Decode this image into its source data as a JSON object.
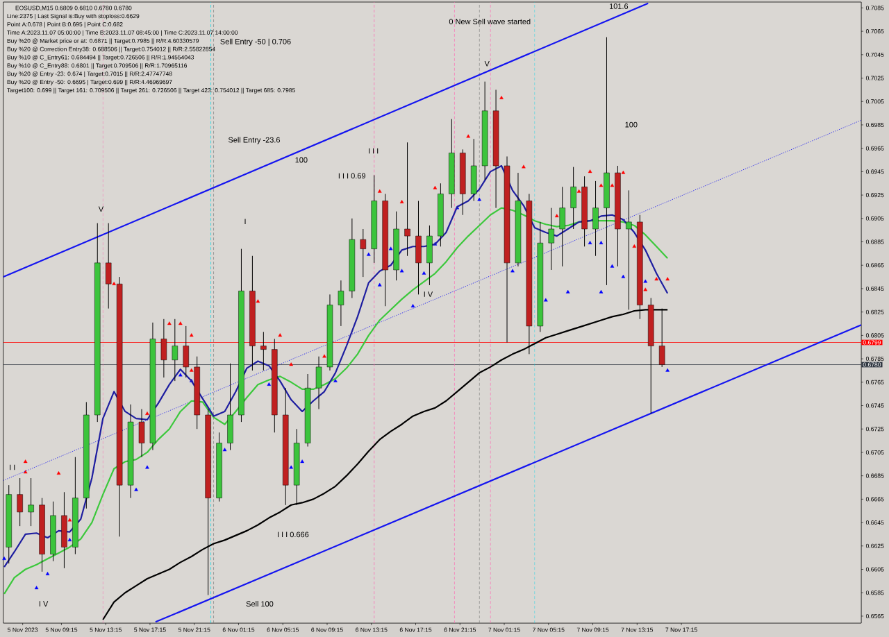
{
  "chart_data": {
    "type": "candlestick",
    "title": "EOSUSD,M15 0.6809 0.6810 0.6780 0.6780",
    "x": [
      "2023-11-05T04:30",
      "2023-11-05T05:30",
      "2023-11-05T06:30",
      "2023-11-05T07:30",
      "2023-11-05T08:30",
      "2023-11-05T09:30",
      "2023-11-05T10:30",
      "2023-11-05T11:30",
      "2023-11-05T12:30",
      "2023-11-05T13:30",
      "2023-11-05T14:30",
      "2023-11-05T15:30",
      "2023-11-05T16:30",
      "2023-11-05T17:30",
      "2023-11-05T18:30",
      "2023-11-05T19:30",
      "2023-11-05T20:30",
      "2023-11-05T21:30",
      "2023-11-05T22:30",
      "2023-11-05T23:30",
      "2023-11-06T00:30",
      "2023-11-06T01:30",
      "2023-11-06T02:30",
      "2023-11-06T03:30",
      "2023-11-06T04:30",
      "2023-11-06T05:30",
      "2023-11-06T06:30",
      "2023-11-06T07:30",
      "2023-11-06T08:30",
      "2023-11-06T09:30",
      "2023-11-06T10:30",
      "2023-11-06T11:30",
      "2023-11-06T12:30",
      "2023-11-06T13:30",
      "2023-11-06T14:30",
      "2023-11-06T15:30",
      "2023-11-06T16:30",
      "2023-11-06T17:30",
      "2023-11-06T18:30",
      "2023-11-06T19:30",
      "2023-11-06T20:30",
      "2023-11-06T21:30",
      "2023-11-06T22:30",
      "2023-11-06T23:30",
      "2023-11-07T00:30",
      "2023-11-07T01:30",
      "2023-11-07T02:30",
      "2023-11-07T03:30",
      "2023-11-07T04:30",
      "2023-11-07T05:30",
      "2023-11-07T06:30",
      "2023-11-07T07:30",
      "2023-11-07T08:30",
      "2023-11-07T09:30",
      "2023-11-07T10:30",
      "2023-11-07T11:30",
      "2023-11-07T12:30",
      "2023-11-07T13:30",
      "2023-11-07T14:30",
      "2023-11-07T15:30"
    ],
    "ohlc": [
      [
        0.6624,
        0.6677,
        0.661,
        0.6669
      ],
      [
        0.6669,
        0.6683,
        0.6642,
        0.6654
      ],
      [
        0.6654,
        0.6683,
        0.6642,
        0.666
      ],
      [
        0.666,
        0.6666,
        0.6603,
        0.6618
      ],
      [
        0.6618,
        0.6663,
        0.6612,
        0.6651
      ],
      [
        0.6651,
        0.6671,
        0.6606,
        0.6624
      ],
      [
        0.6624,
        0.6701,
        0.6618,
        0.6666
      ],
      [
        0.6666,
        0.6748,
        0.6657,
        0.6737
      ],
      [
        0.6737,
        0.6901,
        0.6731,
        0.6867
      ],
      [
        0.6867,
        0.6901,
        0.6828,
        0.6849
      ],
      [
        0.6849,
        0.6855,
        0.6633,
        0.6677
      ],
      [
        0.6677,
        0.6746,
        0.6666,
        0.6731
      ],
      [
        0.6731,
        0.6742,
        0.6701,
        0.6713
      ],
      [
        0.6713,
        0.6816,
        0.6707,
        0.6802
      ],
      [
        0.6802,
        0.6819,
        0.6769,
        0.6784
      ],
      [
        0.6784,
        0.6819,
        0.6766,
        0.6796
      ],
      [
        0.6796,
        0.6813,
        0.6769,
        0.6778
      ],
      [
        0.6778,
        0.6787,
        0.6725,
        0.6737
      ],
      [
        0.6737,
        0.6742,
        0.6583,
        0.6666
      ],
      [
        0.6666,
        0.6722,
        0.6663,
        0.6713
      ],
      [
        0.6713,
        0.6781,
        0.6707,
        0.6737
      ],
      [
        0.6737,
        0.6879,
        0.6731,
        0.6843
      ],
      [
        0.6843,
        0.6873,
        0.6775,
        0.6796
      ],
      [
        0.6796,
        0.6808,
        0.6775,
        0.6793
      ],
      [
        0.6793,
        0.6802,
        0.6722,
        0.6737
      ],
      [
        0.6737,
        0.676,
        0.666,
        0.6677
      ],
      [
        0.6677,
        0.6725,
        0.666,
        0.6713
      ],
      [
        0.6713,
        0.6772,
        0.671,
        0.676
      ],
      [
        0.676,
        0.6787,
        0.6742,
        0.6778
      ],
      [
        0.6778,
        0.684,
        0.6775,
        0.6831
      ],
      [
        0.6831,
        0.6852,
        0.6813,
        0.6843
      ],
      [
        0.6843,
        0.6905,
        0.6837,
        0.6887
      ],
      [
        0.6887,
        0.6896,
        0.6855,
        0.6879
      ],
      [
        0.6879,
        0.6942,
        0.6867,
        0.692
      ],
      [
        0.692,
        0.6926,
        0.683,
        0.6861
      ],
      [
        0.6861,
        0.6911,
        0.6852,
        0.6896
      ],
      [
        0.6896,
        0.697,
        0.6873,
        0.689
      ],
      [
        0.689,
        0.692,
        0.684,
        0.6867
      ],
      [
        0.6867,
        0.6899,
        0.6848,
        0.689
      ],
      [
        0.689,
        0.6935,
        0.6881,
        0.6926
      ],
      [
        0.6926,
        0.699,
        0.6914,
        0.6961
      ],
      [
        0.6961,
        0.6964,
        0.6908,
        0.6926
      ],
      [
        0.6926,
        0.6973,
        0.692,
        0.695
      ],
      [
        0.695,
        0.7022,
        0.6938,
        0.6997
      ],
      [
        0.6997,
        0.7015,
        0.6914,
        0.695
      ],
      [
        0.695,
        0.6958,
        0.6799,
        0.6867
      ],
      [
        0.6867,
        0.6944,
        0.6864,
        0.692
      ],
      [
        0.692,
        0.6926,
        0.6789,
        0.6813
      ],
      [
        0.6813,
        0.6902,
        0.6808,
        0.6884
      ],
      [
        0.6884,
        0.6914,
        0.6861,
        0.6896
      ],
      [
        0.6896,
        0.6932,
        0.6864,
        0.6914
      ],
      [
        0.6914,
        0.6949,
        0.6896,
        0.6932
      ],
      [
        0.6932,
        0.6941,
        0.6881,
        0.6896
      ],
      [
        0.6896,
        0.6937,
        0.6873,
        0.6914
      ],
      [
        0.6914,
        0.706,
        0.6848,
        0.6944
      ],
      [
        0.6944,
        0.695,
        0.6864,
        0.6896
      ],
      [
        0.6896,
        0.6929,
        0.6827,
        0.6902
      ],
      [
        0.6902,
        0.6908,
        0.6819,
        0.6831
      ],
      [
        0.6831,
        0.6837,
        0.6738,
        0.6796
      ],
      [
        0.6796,
        0.6828,
        0.6778,
        0.678
      ]
    ],
    "colors": [
      "#3cc43c",
      "#c02020",
      "#3cc43c",
      "#c02020",
      "#3cc43c",
      "#c02020",
      "#3cc43c",
      "#3cc43c",
      "#3cc43c",
      "#c02020",
      "#c02020",
      "#3cc43c",
      "#c02020",
      "#3cc43c",
      "#c02020",
      "#3cc43c",
      "#c02020",
      "#c02020",
      "#c02020",
      "#3cc43c",
      "#3cc43c",
      "#3cc43c",
      "#c02020",
      "#c02020",
      "#c02020",
      "#c02020",
      "#3cc43c",
      "#3cc43c",
      "#3cc43c",
      "#3cc43c",
      "#3cc43c",
      "#3cc43c",
      "#c02020",
      "#3cc43c",
      "#c02020",
      "#3cc43c",
      "#c02020",
      "#c02020",
      "#3cc43c",
      "#3cc43c",
      "#3cc43c",
      "#c02020",
      "#3cc43c",
      "#3cc43c",
      "#c02020",
      "#c02020",
      "#3cc43c",
      "#c02020",
      "#3cc43c",
      "#3cc43c",
      "#3cc43c",
      "#3cc43c",
      "#c02020",
      "#3cc43c",
      "#3cc43c",
      "#c02020",
      "#3cc43c",
      "#c02020",
      "#c02020",
      "#c02020"
    ],
    "xlim": [
      "2023-11-05T04:00",
      "2023-11-08T09:30"
    ],
    "ylim": [
      0.6559,
      0.709
    ],
    "xticks": [
      {
        "value": "2023-11-05T05:45",
        "label": "5 Nov 2023"
      },
      {
        "value": "2023-11-05T09:15",
        "label": "5 Nov 09:15"
      },
      {
        "value": "2023-11-05T13:15",
        "label": "5 Nov 13:15"
      },
      {
        "value": "2023-11-05T17:15",
        "label": "5 Nov 17:15"
      },
      {
        "value": "2023-11-05T21:15",
        "label": "5 Nov 21:15"
      },
      {
        "value": "2023-11-06T01:15",
        "label": "6 Nov 01:15"
      },
      {
        "value": "2023-11-06T05:15",
        "label": "6 Nov 05:15"
      },
      {
        "value": "2023-11-06T09:15",
        "label": "6 Nov 09:15"
      },
      {
        "value": "2023-11-06T13:15",
        "label": "6 Nov 13:15"
      },
      {
        "value": "2023-11-06T17:15",
        "label": "6 Nov 17:15"
      },
      {
        "value": "2023-11-06T21:15",
        "label": "6 Nov 21:15"
      },
      {
        "value": "2023-11-07T01:15",
        "label": "7 Nov 01:15"
      },
      {
        "value": "2023-11-07T05:15",
        "label": "7 Nov 05:15"
      },
      {
        "value": "2023-11-07T09:15",
        "label": "7 Nov 09:15"
      },
      {
        "value": "2023-11-07T13:15",
        "label": "7 Nov 13:15"
      },
      {
        "value": "2023-11-07T17:15",
        "label": "7 Nov 17:15"
      }
    ],
    "yticks": [
      0.6565,
      0.6585,
      0.6605,
      0.6625,
      0.6645,
      0.6665,
      0.6685,
      0.6705,
      0.6725,
      0.6745,
      0.6765,
      0.6785,
      0.6805,
      0.6825,
      0.6845,
      0.6865,
      0.6885,
      0.6905,
      0.6925,
      0.6945,
      0.6965,
      0.6985,
      0.7005,
      0.7025,
      0.7045,
      0.7065,
      0.7085
    ],
    "series": [
      {
        "type": "line",
        "color": "#1414f0",
        "line_style": "solid",
        "x": [
          "2023-11-05T04:00",
          "2023-11-07T14:15"
        ],
        "values": [
          0.6855,
          0.7089
        ]
      },
      {
        "type": "line",
        "color": "#1414f0",
        "line_style": "solid",
        "x": [
          "2023-11-05T17:45",
          "2023-11-08T09:30"
        ],
        "values": [
          0.656,
          0.6814
        ]
      },
      {
        "type": "line",
        "color": "#1414f0",
        "line_style": "dotted",
        "x": [
          "2023-11-05T04:00",
          "2023-11-08T09:30"
        ],
        "values": [
          0.6681,
          0.6989
        ]
      },
      {
        "type": "line",
        "color": "#000000",
        "line_style": "solid",
        "x": [
          "2023-11-05T13:00",
          "2023-11-05T14:00",
          "2023-11-05T15:00",
          "2023-11-05T16:00",
          "2023-11-05T17:00",
          "2023-11-05T18:00",
          "2023-11-05T19:00",
          "2023-11-05T20:00",
          "2023-11-05T21:00",
          "2023-11-05T22:00",
          "2023-11-05T23:00",
          "2023-11-06T00:00",
          "2023-11-06T01:00",
          "2023-11-06T02:00",
          "2023-11-06T03:00",
          "2023-11-06T04:00",
          "2023-11-06T05:00",
          "2023-11-06T06:00",
          "2023-11-06T07:00",
          "2023-11-06T08:00",
          "2023-11-06T09:00",
          "2023-11-06T10:00",
          "2023-11-06T11:00",
          "2023-11-06T12:00",
          "2023-11-06T13:00",
          "2023-11-06T14:00",
          "2023-11-06T15:00",
          "2023-11-06T16:00",
          "2023-11-06T17:00",
          "2023-11-06T18:00",
          "2023-11-06T19:00",
          "2023-11-06T20:00",
          "2023-11-06T21:00",
          "2023-11-06T22:00",
          "2023-11-06T23:00",
          "2023-11-07T00:00",
          "2023-11-07T01:00",
          "2023-11-07T02:00",
          "2023-11-07T03:00",
          "2023-11-07T04:00",
          "2023-11-07T05:00",
          "2023-11-07T06:00",
          "2023-11-07T07:00",
          "2023-11-07T08:00",
          "2023-11-07T09:00",
          "2023-11-07T10:00",
          "2023-11-07T11:00",
          "2023-11-07T12:00",
          "2023-11-07T13:00",
          "2023-11-07T14:00",
          "2023-11-07T15:00",
          "2023-11-07T16:00"
        ],
        "values": [
          0.6562,
          0.6577,
          0.6585,
          0.6591,
          0.6597,
          0.6601,
          0.6605,
          0.6611,
          0.6616,
          0.6622,
          0.6627,
          0.663,
          0.6634,
          0.6638,
          0.6643,
          0.6649,
          0.6654,
          0.666,
          0.6662,
          0.6665,
          0.667,
          0.6676,
          0.6685,
          0.6695,
          0.6706,
          0.6716,
          0.6723,
          0.6729,
          0.6736,
          0.674,
          0.6743,
          0.6749,
          0.6757,
          0.6765,
          0.6773,
          0.6778,
          0.6784,
          0.6789,
          0.6793,
          0.6798,
          0.6803,
          0.6806,
          0.6809,
          0.6812,
          0.6815,
          0.6818,
          0.6821,
          0.6823,
          0.6826,
          0.6827,
          0.6827,
          0.6827
        ]
      },
      {
        "type": "line",
        "color": "#3cc83c",
        "line_style": "solid",
        "x": [
          "2023-11-05T04:05",
          "2023-11-05T05:00",
          "2023-11-05T06:00",
          "2023-11-05T07:00",
          "2023-11-05T08:00",
          "2023-11-05T09:00",
          "2023-11-05T10:00",
          "2023-11-05T11:00",
          "2023-11-05T12:00",
          "2023-11-05T13:00",
          "2023-11-05T14:00",
          "2023-11-05T15:00",
          "2023-11-05T16:00",
          "2023-11-05T17:00",
          "2023-11-05T18:00",
          "2023-11-05T19:00",
          "2023-11-05T20:00",
          "2023-11-05T21:00",
          "2023-11-05T22:00",
          "2023-11-05T23:00",
          "2023-11-06T00:00",
          "2023-11-06T01:00",
          "2023-11-06T02:00",
          "2023-11-06T03:00",
          "2023-11-06T04:00",
          "2023-11-06T05:00",
          "2023-11-06T06:00",
          "2023-11-06T07:00",
          "2023-11-06T08:00",
          "2023-11-06T09:00",
          "2023-11-06T10:00",
          "2023-11-06T11:00",
          "2023-11-06T12:00",
          "2023-11-06T13:00",
          "2023-11-06T14:00",
          "2023-11-06T15:00",
          "2023-11-06T16:00",
          "2023-11-06T17:00",
          "2023-11-06T18:00",
          "2023-11-06T19:00",
          "2023-11-06T20:00",
          "2023-11-06T21:00",
          "2023-11-06T22:00",
          "2023-11-06T23:00",
          "2023-11-07T00:00",
          "2023-11-07T01:00",
          "2023-11-07T02:00",
          "2023-11-07T03:00",
          "2023-11-07T04:00",
          "2023-11-07T05:00",
          "2023-11-07T06:00",
          "2023-11-07T07:00",
          "2023-11-07T08:00",
          "2023-11-07T09:00",
          "2023-11-07T10:00",
          "2023-11-07T11:00",
          "2023-11-07T12:00",
          "2023-11-07T13:00",
          "2023-11-07T14:00",
          "2023-11-07T15:00",
          "2023-11-07T16:00"
        ],
        "values": [
          0.6584,
          0.6598,
          0.6605,
          0.6609,
          0.6614,
          0.6619,
          0.6624,
          0.6631,
          0.6645,
          0.6669,
          0.6691,
          0.6697,
          0.6699,
          0.6705,
          0.6716,
          0.6725,
          0.674,
          0.6749,
          0.6748,
          0.6735,
          0.6729,
          0.674,
          0.6752,
          0.6763,
          0.6767,
          0.677,
          0.6765,
          0.6759,
          0.6759,
          0.6763,
          0.6768,
          0.6777,
          0.6789,
          0.6805,
          0.6818,
          0.6827,
          0.6836,
          0.6844,
          0.6851,
          0.6858,
          0.6868,
          0.688,
          0.689,
          0.6899,
          0.6908,
          0.6914,
          0.6912,
          0.6908,
          0.6903,
          0.69,
          0.6898,
          0.6899,
          0.6902,
          0.6903,
          0.6903,
          0.6903,
          0.6902,
          0.6899,
          0.6891,
          0.6881,
          0.6871
        ]
      },
      {
        "type": "line",
        "color": "#1e1ea0",
        "line_style": "solid",
        "x": [
          "2023-11-05T04:05",
          "2023-11-05T05:00",
          "2023-11-05T06:00",
          "2023-11-05T07:00",
          "2023-11-05T08:00",
          "2023-11-05T09:00",
          "2023-11-05T10:00",
          "2023-11-05T11:00",
          "2023-11-05T12:00",
          "2023-11-05T13:00",
          "2023-11-05T14:00",
          "2023-11-05T15:00",
          "2023-11-05T16:00",
          "2023-11-05T17:00",
          "2023-11-05T18:00",
          "2023-11-05T19:00",
          "2023-11-05T20:00",
          "2023-11-05T21:00",
          "2023-11-05T22:00",
          "2023-11-05T23:00",
          "2023-11-06T00:00",
          "2023-11-06T01:00",
          "2023-11-06T02:00",
          "2023-11-06T03:00",
          "2023-11-06T04:00",
          "2023-11-06T05:00",
          "2023-11-06T06:00",
          "2023-11-06T07:00",
          "2023-11-06T08:00",
          "2023-11-06T09:00",
          "2023-11-06T10:00",
          "2023-11-06T11:00",
          "2023-11-06T12:00",
          "2023-11-06T13:00",
          "2023-11-06T14:00",
          "2023-11-06T15:00",
          "2023-11-06T16:00",
          "2023-11-06T17:00",
          "2023-11-06T18:00",
          "2023-11-06T19:00",
          "2023-11-06T20:00",
          "2023-11-06T21:00",
          "2023-11-06T22:00",
          "2023-11-06T23:00",
          "2023-11-07T00:00",
          "2023-11-07T01:00",
          "2023-11-07T02:00",
          "2023-11-07T03:00",
          "2023-11-07T04:00",
          "2023-11-07T05:00",
          "2023-11-07T06:00",
          "2023-11-07T07:00",
          "2023-11-07T08:00",
          "2023-11-07T09:00",
          "2023-11-07T10:00",
          "2023-11-07T11:00",
          "2023-11-07T12:00",
          "2023-11-07T13:00",
          "2023-11-07T14:00",
          "2023-11-07T15:00",
          "2023-11-07T16:00"
        ],
        "values": [
          0.6607,
          0.662,
          0.6635,
          0.6636,
          0.6632,
          0.6638,
          0.6637,
          0.6648,
          0.6683,
          0.6734,
          0.6757,
          0.674,
          0.6734,
          0.6733,
          0.6747,
          0.6763,
          0.6776,
          0.6766,
          0.6751,
          0.6736,
          0.674,
          0.6757,
          0.6777,
          0.6783,
          0.6779,
          0.6766,
          0.675,
          0.674,
          0.6749,
          0.6757,
          0.6773,
          0.6796,
          0.6821,
          0.685,
          0.686,
          0.6865,
          0.6878,
          0.6881,
          0.6881,
          0.6883,
          0.6893,
          0.6915,
          0.692,
          0.693,
          0.6945,
          0.695,
          0.6929,
          0.6916,
          0.6897,
          0.6893,
          0.689,
          0.6896,
          0.6902,
          0.6903,
          0.6907,
          0.6908,
          0.6904,
          0.6893,
          0.6878,
          0.6858,
          0.6841
        ]
      },
      {
        "type": "scatter",
        "color": "#ff0000",
        "marker": "triangle",
        "x": [
          "2023-11-05T06:00",
          "2023-11-05T06:00",
          "2023-11-05T09:00",
          "2023-11-05T10:00",
          "2023-11-05T14:00",
          "2023-11-05T17:00",
          "2023-11-05T19:00",
          "2023-11-05T20:00",
          "2023-11-05T21:00",
          "2023-11-05T21:00",
          "2023-11-06T03:00",
          "2023-11-06T05:00",
          "2023-11-06T06:00",
          "2023-11-06T09:00",
          "2023-11-06T14:00",
          "2023-11-06T16:00",
          "2023-11-06T19:00",
          "2023-11-06T22:00",
          "2023-11-07T01:00",
          "2023-11-07T03:00",
          "2023-11-07T06:00",
          "2023-11-07T08:00",
          "2023-11-07T09:00",
          "2023-11-07T10:00",
          "2023-11-07T11:00",
          "2023-11-07T12:00",
          "2023-11-07T13:00",
          "2023-11-07T14:00",
          "2023-11-07T15:00",
          "2023-11-07T16:00"
        ],
        "values": [
          0.6697,
          0.6688,
          0.6687,
          0.6647,
          0.6849,
          0.6738,
          0.6815,
          0.6815,
          0.6775,
          0.6805,
          0.6834,
          0.6805,
          0.678,
          0.6787,
          0.6928,
          0.6919,
          0.6931,
          0.6975,
          0.7008,
          0.6949,
          0.6907,
          0.6928,
          0.6945,
          0.6933,
          0.6933,
          0.6944,
          0.6881,
          0.6844,
          0.6853,
          0.6853
        ]
      },
      {
        "type": "scatter",
        "color": "#0000ff",
        "marker": "triangle",
        "x": [
          "2023-11-05T04:05",
          "2023-11-05T07:00",
          "2023-11-05T08:00",
          "2023-11-05T10:00",
          "2023-11-05T16:00",
          "2023-11-05T17:00",
          "2023-11-05T20:00",
          "2023-11-05T21:00",
          "2023-11-06T00:00",
          "2023-11-06T04:00",
          "2023-11-06T06:00",
          "2023-11-06T07:00",
          "2023-11-06T10:00",
          "2023-11-06T13:00",
          "2023-11-06T14:00",
          "2023-11-06T15:00",
          "2023-11-06T16:00",
          "2023-11-06T17:00",
          "2023-11-06T18:00",
          "2023-11-06T19:00",
          "2023-11-06T21:00",
          "2023-11-06T23:00",
          "2023-11-07T02:00",
          "2023-11-07T05:00",
          "2023-11-07T07:00",
          "2023-11-07T09:00",
          "2023-11-07T10:00",
          "2023-11-07T10:00",
          "2023-11-07T11:00",
          "2023-11-07T12:00",
          "2023-11-07T14:00",
          "2023-11-07T16:00"
        ],
        "values": [
          0.6614,
          0.6589,
          0.6601,
          0.663,
          0.6673,
          0.6692,
          0.6771,
          0.6766,
          0.6707,
          0.6763,
          0.6692,
          0.6697,
          0.6766,
          0.6874,
          0.6848,
          0.6879,
          0.686,
          0.683,
          0.6858,
          0.6883,
          0.6914,
          0.6921,
          0.686,
          0.6835,
          0.6842,
          0.6884,
          0.6884,
          0.6842,
          0.6864,
          0.6855,
          0.6851,
          0.6775
        ]
      }
    ],
    "ref_lines": [
      {
        "axis": "y",
        "value": 0.6799,
        "label": "0.6799",
        "color": "#ff0000"
      },
      {
        "axis": "y",
        "value": 0.678,
        "label": "0.6780",
        "color": "#2f3640"
      },
      {
        "axis": "x",
        "value": "2023-11-05T13:00",
        "color": "#ff69b4",
        "line_style": "dashed"
      },
      {
        "axis": "x",
        "value": "2023-11-05T22:45",
        "color": "#00d8e8",
        "line_style": "dashed"
      },
      {
        "axis": "x",
        "value": "2023-11-05T23:00",
        "color": "#808080",
        "line_style": "dashed"
      },
      {
        "axis": "x",
        "value": "2023-11-06T13:30",
        "color": "#ff69b4",
        "line_style": "dashed"
      },
      {
        "axis": "x",
        "value": "2023-11-06T20:45",
        "color": "#ff69b4",
        "line_style": "dashed"
      },
      {
        "axis": "x",
        "value": "2023-11-06T23:00",
        "color": "#808080",
        "line_style": "dashed"
      },
      {
        "axis": "x",
        "value": "2023-11-07T00:00",
        "color": "#ff69b4",
        "line_style": "dashed"
      },
      {
        "axis": "x",
        "value": "2023-11-07T04:00",
        "color": "#00d8e8",
        "line_style": "dashed"
      }
    ],
    "annotations": [
      "Line:2375 | Last Signal is:Buy with stoploss:0.6629",
      "Point A:0.678 | Point B:0.695 | Point C:0.682",
      "Time A:2023.11.07 05:00:00 | Time B:2023.11.07 08:45:00 | Time C:2023.11.07 14:00:00",
      "Buy %20 @ Market price or at: 0.6871 || Target:0.7985 || R/R:4.60330579",
      "Buy %20 @ Correction Entry38: 0.688506 || Target:0.754012 || R/R:2.55822854",
      "Buy %10 @ C_Entry61: 0.684494 || Target:0.726506 || R/R:1.94554043",
      "Buy %10 @ C_Entry88: 0.6801 || Target:0.709506 || R/R:1.70965116",
      "Buy %20 @ Entry -23: 0.674 | Target:0.7015 || R/R:2.47747748",
      "Buy %20 @ Entry -50: 0.6695 | Target:0.699 || R/R:4.46969697",
      "Target100: 0.699 || Target 161: 0.709506 || Target 261: 0.726506 || Target 423: 0.754012 || Target 685: 0.7985",
      "Sell Entry -50 | 0.706",
      "Sell Entry -23.6",
      "100",
      "I I I 0.69",
      "I I I",
      "I",
      "V",
      "I I",
      "I V",
      "I V",
      "V",
      "0 New Sell wave started",
      "101.6",
      "100",
      "I I I 0.666",
      "Sell 100"
    ]
  }
}
